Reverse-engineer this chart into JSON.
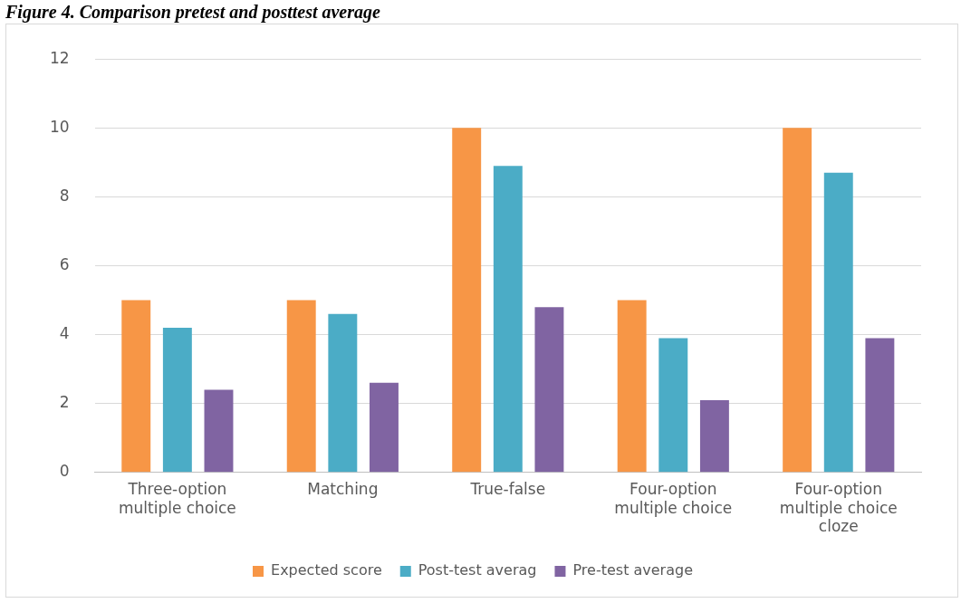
{
  "chart_data": {
    "type": "bar",
    "title": "Figure 4. Comparison pretest and posttest average",
    "categories": [
      "Three-option multiple choice",
      "Matching",
      "True-false",
      "Four-option multiple choice",
      "Four-option multiple choice cloze"
    ],
    "series": [
      {
        "name": "Expected score",
        "color": "#f79646",
        "values": [
          5,
          5,
          10,
          5,
          10
        ]
      },
      {
        "name": "Post-test averag",
        "color": "#4bacc6",
        "values": [
          4.2,
          4.6,
          8.9,
          3.9,
          8.7
        ]
      },
      {
        "name": "Pre-test average",
        "color": "#8064a2",
        "values": [
          2.4,
          2.6,
          4.8,
          2.1,
          3.9
        ]
      }
    ],
    "ylim": [
      0,
      12
    ],
    "yticks": [
      0,
      2,
      4,
      6,
      8,
      10,
      12
    ],
    "grid": "y",
    "legend": "bottom"
  }
}
